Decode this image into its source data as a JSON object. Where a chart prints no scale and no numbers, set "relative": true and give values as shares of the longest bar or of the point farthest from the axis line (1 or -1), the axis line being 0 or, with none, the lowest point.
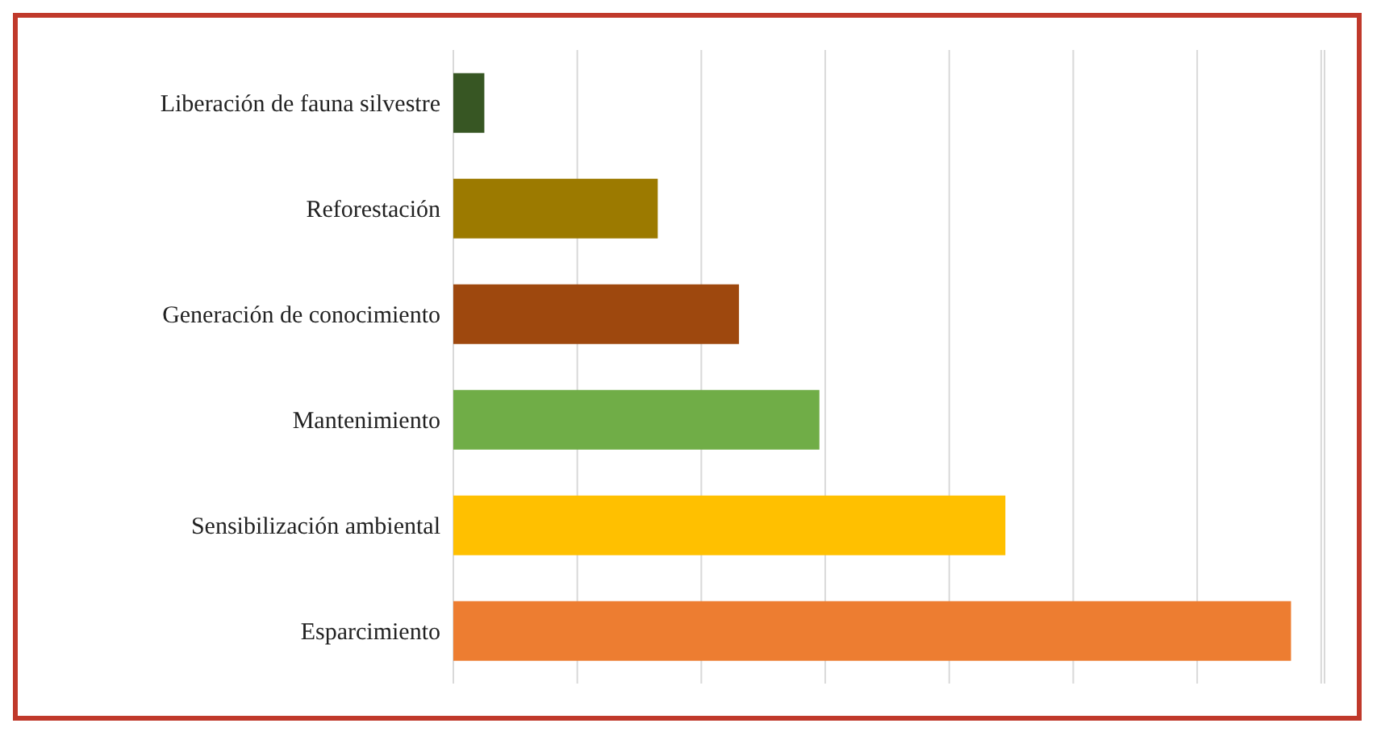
{
  "chart_data": {
    "type": "bar",
    "orientation": "horizontal",
    "relative": true,
    "grid": "x",
    "categories": [
      "Liberación de fauna silvestre",
      "Reforestación",
      "Generación de conocimiento",
      "Mantenimiento",
      "Sensibilización ambiental",
      "Esparcimiento"
    ],
    "values": [
      0.037,
      0.244,
      0.341,
      0.437,
      0.659,
      1
    ],
    "colors": [
      "#375623",
      "#9c7a00",
      "#9e480e",
      "#70ad47",
      "#ffc000",
      "#ed7d31"
    ]
  }
}
